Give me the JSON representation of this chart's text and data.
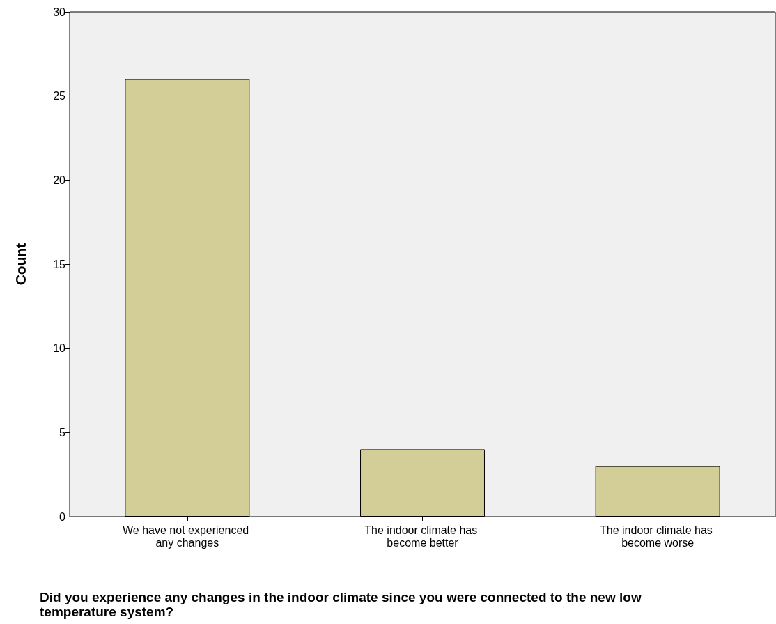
{
  "chart_data": {
    "type": "bar",
    "xlabel": "Did you experience any changes in the indoor climate since you were connected to the new low temperature system?",
    "ylabel": "Count",
    "categories": [
      "We have not experienced any changes",
      "The indoor climate has become better",
      "The indoor climate has become worse"
    ],
    "values": [
      26,
      4,
      3
    ],
    "color": "#d3ce97",
    "ylim": [
      0,
      30
    ],
    "yticks": [
      0,
      5,
      10,
      15,
      20,
      25,
      30
    ],
    "grid": false
  }
}
